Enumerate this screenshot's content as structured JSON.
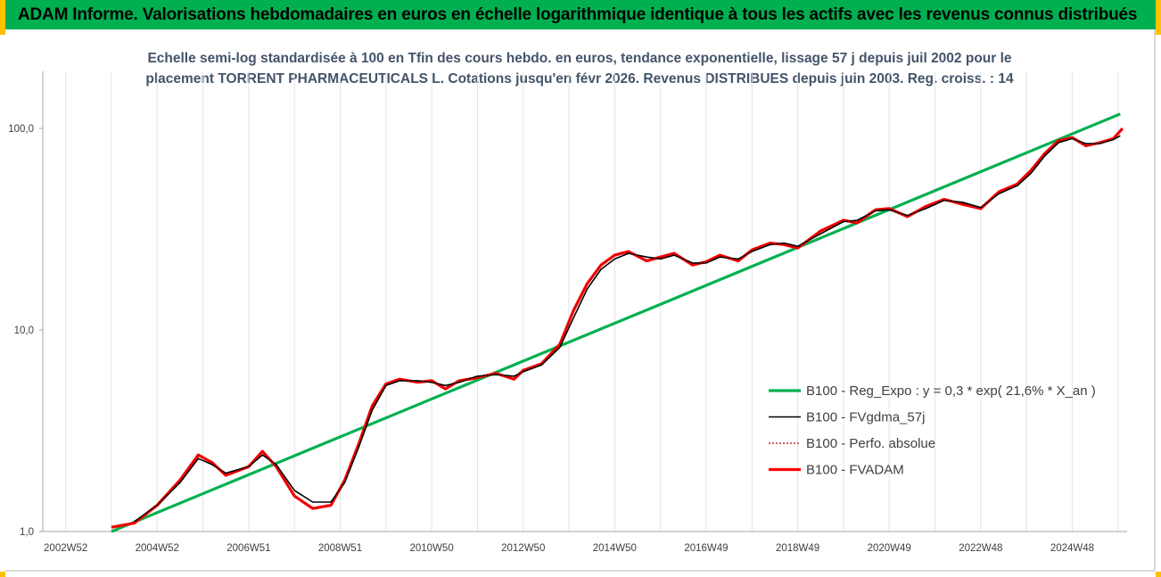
{
  "header": {
    "title": "ADAM Informe. Valorisations hebdomadaires en euros en échelle logarithmique identique à tous les actifs avec les revenus connus distribués"
  },
  "chart_data": {
    "type": "line",
    "title": "",
    "subtitle_lines": [
      "Echelle semi-log standardisée à 100 en Tfin des cours hebdo. en euros, tendance exponentielle, lissage 57 j depuis juil 2002 pour le",
      "placement TORRENT PHARMACEUTICALS L. Cotations jusqu'en févr 2026. Revenus DISTRIBUES depuis juin 2003. Reg. croiss. : 14"
    ],
    "y_scale": "log",
    "ylim": [
      1,
      135
    ],
    "y_ticks": [
      "1,0",
      "10,0",
      "100,0"
    ],
    "x_range": [
      2002.5,
      2026.2
    ],
    "x_tick_labels": [
      "2002W52",
      "2004W52",
      "2006W51",
      "2008W51",
      "2010W50",
      "2012W50",
      "2014W50",
      "2016W49",
      "2018W49",
      "2020W49",
      "2022W48",
      "2024W48"
    ],
    "x_tick_positions": [
      2003.0,
      2005.0,
      2007.0,
      2009.0,
      2011.0,
      2013.0,
      2015.0,
      2017.0,
      2019.0,
      2021.0,
      2023.0,
      2025.0
    ],
    "grid": "vertical",
    "legend_position": "right",
    "series": [
      {
        "name": "B100 - Reg_Expo : y = 0,3 * exp( 21,6% *  X_an )",
        "color": "#00b050",
        "style": "thick",
        "x": [
          2004.0,
          2026.05
        ],
        "y": [
          1.0,
          118
        ]
      },
      {
        "name": "B100 - FVgdma_57j",
        "color": "#000000",
        "style": "thin",
        "x": [
          2004.5,
          2005.0,
          2005.5,
          2005.9,
          2006.2,
          2006.5,
          2007.0,
          2007.3,
          2007.6,
          2008.0,
          2008.4,
          2008.8,
          2009.1,
          2009.4,
          2009.7,
          2010.0,
          2010.3,
          2010.7,
          2011.0,
          2011.3,
          2011.6,
          2012.0,
          2012.4,
          2012.8,
          2013.0,
          2013.4,
          2013.8,
          2014.1,
          2014.4,
          2014.7,
          2015.0,
          2015.3,
          2015.7,
          2016.0,
          2016.3,
          2016.7,
          2017.0,
          2017.3,
          2017.7,
          2018.0,
          2018.4,
          2018.7,
          2019.0,
          2019.5,
          2020.0,
          2020.3,
          2020.7,
          2021.0,
          2021.4,
          2021.8,
          2022.2,
          2022.6,
          2023.0,
          2023.4,
          2023.8,
          2024.1,
          2024.4,
          2024.7,
          2025.0,
          2025.3,
          2025.6,
          2025.9,
          2026.05
        ],
        "y": [
          1.12,
          1.35,
          1.75,
          2.3,
          2.15,
          1.95,
          2.1,
          2.4,
          2.15,
          1.6,
          1.4,
          1.4,
          1.75,
          2.6,
          4.0,
          5.3,
          5.6,
          5.6,
          5.5,
          5.3,
          5.5,
          5.9,
          6.0,
          5.9,
          6.2,
          6.7,
          8.2,
          11.5,
          16.0,
          20.0,
          22.5,
          24.0,
          23.0,
          22.5,
          23.5,
          21.5,
          21.5,
          23.0,
          22.5,
          24.5,
          26.5,
          27.0,
          26.0,
          30.0,
          34.5,
          35.0,
          39.0,
          39.5,
          37.0,
          40.0,
          44.0,
          43.0,
          40.5,
          47.5,
          52.0,
          60.0,
          73.0,
          85.0,
          89.0,
          84.0,
          84.0,
          88.0,
          92.0
        ]
      },
      {
        "name": "B100 - Perfo. absolue",
        "color": "#c00000",
        "style": "dotted",
        "x": [
          2004.0,
          2004.5,
          2005.0,
          2005.5,
          2005.9,
          2006.2,
          2006.5,
          2007.0,
          2007.3,
          2007.6,
          2008.0,
          2008.4,
          2008.8,
          2009.1,
          2009.4,
          2009.7,
          2010.0,
          2010.3,
          2010.7,
          2011.0,
          2011.3,
          2011.6,
          2012.0,
          2012.4,
          2012.8,
          2013.0,
          2013.4,
          2013.8,
          2014.1,
          2014.4,
          2014.7,
          2015.0,
          2015.3,
          2015.7,
          2016.0,
          2016.3,
          2016.7,
          2017.0,
          2017.3,
          2017.7,
          2018.0,
          2018.4,
          2018.7,
          2019.0,
          2019.5,
          2020.0,
          2020.3,
          2020.7,
          2021.0,
          2021.4,
          2021.8,
          2022.2,
          2022.6,
          2023.0,
          2023.4,
          2023.8,
          2024.1,
          2024.4,
          2024.7,
          2025.0,
          2025.3,
          2025.6,
          2025.9,
          2026.1
        ],
        "y": [
          1.05,
          1.1,
          1.35,
          1.8,
          2.4,
          2.2,
          1.9,
          2.1,
          2.5,
          2.1,
          1.5,
          1.3,
          1.35,
          1.8,
          2.7,
          4.2,
          5.4,
          5.7,
          5.5,
          5.6,
          5.1,
          5.6,
          5.8,
          6.1,
          5.7,
          6.3,
          6.8,
          8.5,
          12.5,
          17.0,
          21.0,
          23.5,
          24.5,
          22.0,
          23.0,
          24.0,
          21.0,
          21.8,
          23.5,
          22.0,
          25.0,
          27.0,
          26.5,
          25.5,
          31.0,
          35.0,
          34.0,
          39.5,
          40.0,
          36.5,
          41.0,
          44.5,
          42.0,
          40.0,
          48.5,
          53.0,
          62.0,
          75.0,
          87.0,
          90.0,
          82.0,
          85.0,
          89.0,
          100.0
        ]
      },
      {
        "name": "B100 - FVADAM",
        "color": "#ff0000",
        "style": "thick",
        "x": [
          2004.0,
          2004.5,
          2005.0,
          2005.5,
          2005.9,
          2006.2,
          2006.5,
          2007.0,
          2007.3,
          2007.6,
          2008.0,
          2008.4,
          2008.8,
          2009.1,
          2009.4,
          2009.7,
          2010.0,
          2010.3,
          2010.7,
          2011.0,
          2011.3,
          2011.6,
          2012.0,
          2012.4,
          2012.8,
          2013.0,
          2013.4,
          2013.8,
          2014.1,
          2014.4,
          2014.7,
          2015.0,
          2015.3,
          2015.7,
          2016.0,
          2016.3,
          2016.7,
          2017.0,
          2017.3,
          2017.7,
          2018.0,
          2018.4,
          2018.7,
          2019.0,
          2019.5,
          2020.0,
          2020.3,
          2020.7,
          2021.0,
          2021.4,
          2021.8,
          2022.2,
          2022.6,
          2023.0,
          2023.4,
          2023.8,
          2024.1,
          2024.4,
          2024.7,
          2025.0,
          2025.3,
          2025.6,
          2025.9,
          2026.1
        ],
        "y": [
          1.05,
          1.1,
          1.35,
          1.8,
          2.4,
          2.2,
          1.9,
          2.1,
          2.5,
          2.1,
          1.5,
          1.3,
          1.35,
          1.8,
          2.7,
          4.2,
          5.4,
          5.7,
          5.5,
          5.6,
          5.1,
          5.6,
          5.8,
          6.1,
          5.7,
          6.3,
          6.8,
          8.5,
          12.5,
          17.0,
          21.0,
          23.5,
          24.5,
          22.0,
          23.0,
          24.0,
          21.0,
          21.8,
          23.5,
          22.0,
          25.0,
          27.0,
          26.5,
          25.5,
          31.0,
          35.0,
          34.0,
          39.5,
          40.0,
          36.5,
          41.0,
          44.5,
          42.0,
          40.0,
          48.5,
          53.0,
          62.0,
          75.0,
          87.0,
          90.0,
          82.0,
          85.0,
          89.0,
          100.0
        ]
      }
    ]
  }
}
